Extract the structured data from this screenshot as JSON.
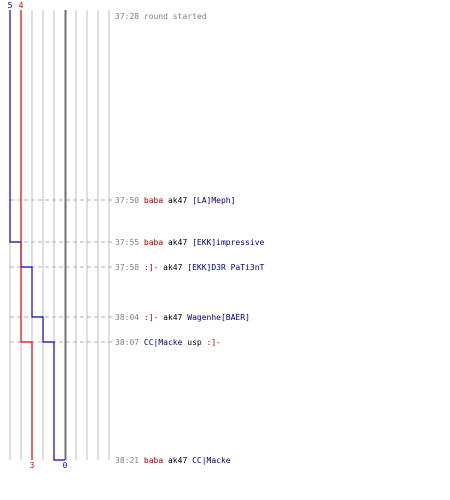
{
  "chart_data": {
    "type": "line",
    "title": "",
    "series": [
      {
        "color": "#0000cc",
        "start_count": "5",
        "end_count": "0",
        "values": [
          5,
          5,
          4,
          3,
          2,
          1,
          0
        ],
        "x": [
          "37:28",
          "37:50",
          "37:55",
          "37:58",
          "38:04",
          "38:07",
          "38:21"
        ]
      },
      {
        "color": "#dd0000",
        "start_count": "4",
        "end_count": "3",
        "values": [
          4,
          4,
          4,
          4,
          4,
          3,
          3
        ],
        "x": [
          "37:28",
          "37:50",
          "37:55",
          "37:58",
          "38:04",
          "38:07",
          "38:21"
        ]
      }
    ],
    "ylim": [
      0,
      5
    ],
    "grid": true,
    "events": [
      {
        "time": "37:28",
        "parts": [
          {
            "text": "round started",
            "color": "#808080"
          }
        ]
      },
      {
        "time": "37:50",
        "parts": [
          {
            "text": "baba",
            "color": "#aa0000"
          },
          {
            "text": " ak47 ",
            "color": "#000000"
          },
          {
            "text": "[LA]Meph]",
            "color": "#000080"
          }
        ]
      },
      {
        "time": "37:55",
        "parts": [
          {
            "text": "baba",
            "color": "#aa0000"
          },
          {
            "text": " ak47 ",
            "color": "#000000"
          },
          {
            "text": "[EKK]impressive",
            "color": "#000080"
          }
        ]
      },
      {
        "time": "37:58",
        "parts": [
          {
            "text": ":]-",
            "color": "#aa0000"
          },
          {
            "text": " ak47 ",
            "color": "#000000"
          },
          {
            "text": "[EKK]D3R PaTi3nT",
            "color": "#000080"
          }
        ]
      },
      {
        "time": "38:04",
        "parts": [
          {
            "text": ":]-",
            "color": "#aa0000"
          },
          {
            "text": " ak47 ",
            "color": "#000000"
          },
          {
            "text": "Wagenhe[BAER]",
            "color": "#000080"
          }
        ]
      },
      {
        "time": "38:07",
        "parts": [
          {
            "text": "CC|Macke",
            "color": "#000080"
          },
          {
            "text": " usp ",
            "color": "#000000"
          },
          {
            "text": ":]-",
            "color": "#aa0000"
          }
        ]
      },
      {
        "time": "38:21",
        "parts": [
          {
            "text": "baba",
            "color": "#aa0000"
          },
          {
            "text": " ak47 ",
            "color": "#000000"
          },
          {
            "text": "CC|Macke",
            "color": "#000080"
          }
        ]
      }
    ]
  }
}
